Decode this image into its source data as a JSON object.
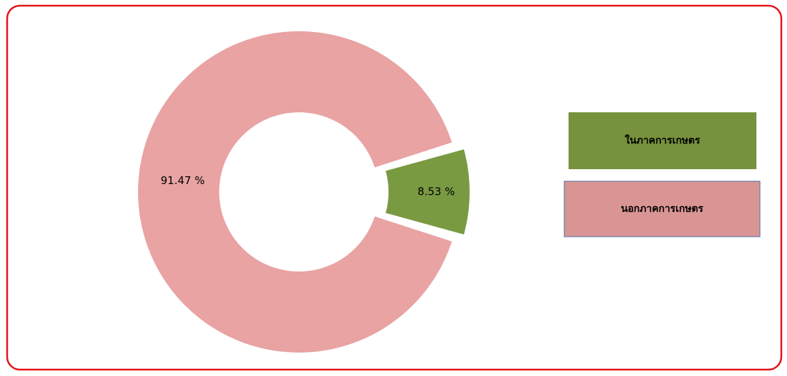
{
  "chart_data": {
    "type": "pie",
    "donut": true,
    "categories": [
      "ในภาคการเกษตร",
      "นอกภาคการเกษตร"
    ],
    "values": [
      8.53,
      91.47
    ],
    "value_labels": [
      "8.53 %",
      "91.47 %"
    ],
    "colors": [
      "#7a9a42",
      "#e8a3a2"
    ],
    "legend_colors": [
      "#76923c",
      "#d99594"
    ],
    "legend": "right"
  }
}
